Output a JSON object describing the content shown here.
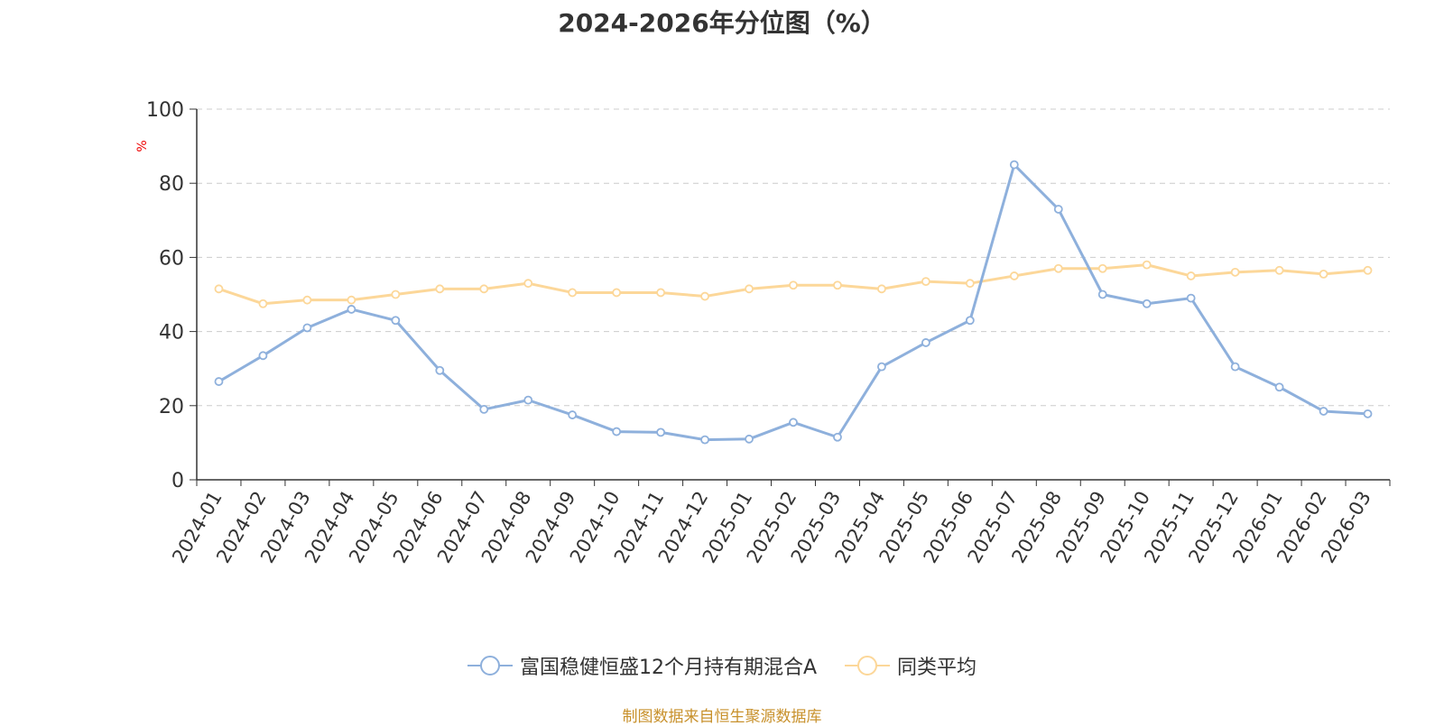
{
  "chart_data": {
    "type": "line",
    "title": "2024-2026年分位图（%）",
    "ylabel": "%",
    "ylim": [
      0,
      100
    ],
    "yticks": [
      0,
      20,
      40,
      60,
      80,
      100
    ],
    "grid": true,
    "legend_position": "bottom",
    "categories": [
      "2024-01",
      "2024-02",
      "2024-03",
      "2024-04",
      "2024-05",
      "2024-06",
      "2024-07",
      "2024-08",
      "2024-09",
      "2024-10",
      "2024-11",
      "2024-12",
      "2025-01",
      "2025-02",
      "2025-03",
      "2025-04",
      "2025-05",
      "2025-06",
      "2025-07",
      "2025-08",
      "2025-09",
      "2025-10",
      "2025-11",
      "2025-12",
      "2026-01",
      "2026-02",
      "2026-03"
    ],
    "series": [
      {
        "name": "富国稳健恒盛12个月持有期混合A",
        "color": "#8eb0dc",
        "values": [
          26.5,
          33.5,
          41,
          46,
          43,
          29.5,
          19,
          21.5,
          17.5,
          13,
          12.8,
          10.8,
          11,
          15.5,
          11.5,
          30.5,
          37,
          43,
          85,
          73,
          50,
          47.5,
          49,
          30.5,
          25,
          18.5,
          17.8
        ]
      },
      {
        "name": "同类平均",
        "color": "#fcd799",
        "values": [
          51.5,
          47.5,
          48.5,
          48.5,
          50,
          51.5,
          51.5,
          53,
          50.5,
          50.5,
          50.5,
          49.5,
          51.5,
          52.5,
          52.5,
          51.5,
          53.5,
          53,
          55,
          57,
          57,
          58,
          55,
          56,
          56.5,
          55.5,
          56.5
        ]
      }
    ]
  },
  "footer": {
    "source": "制图数据来自恒生聚源数据库",
    "source_color": "#c8912c"
  }
}
